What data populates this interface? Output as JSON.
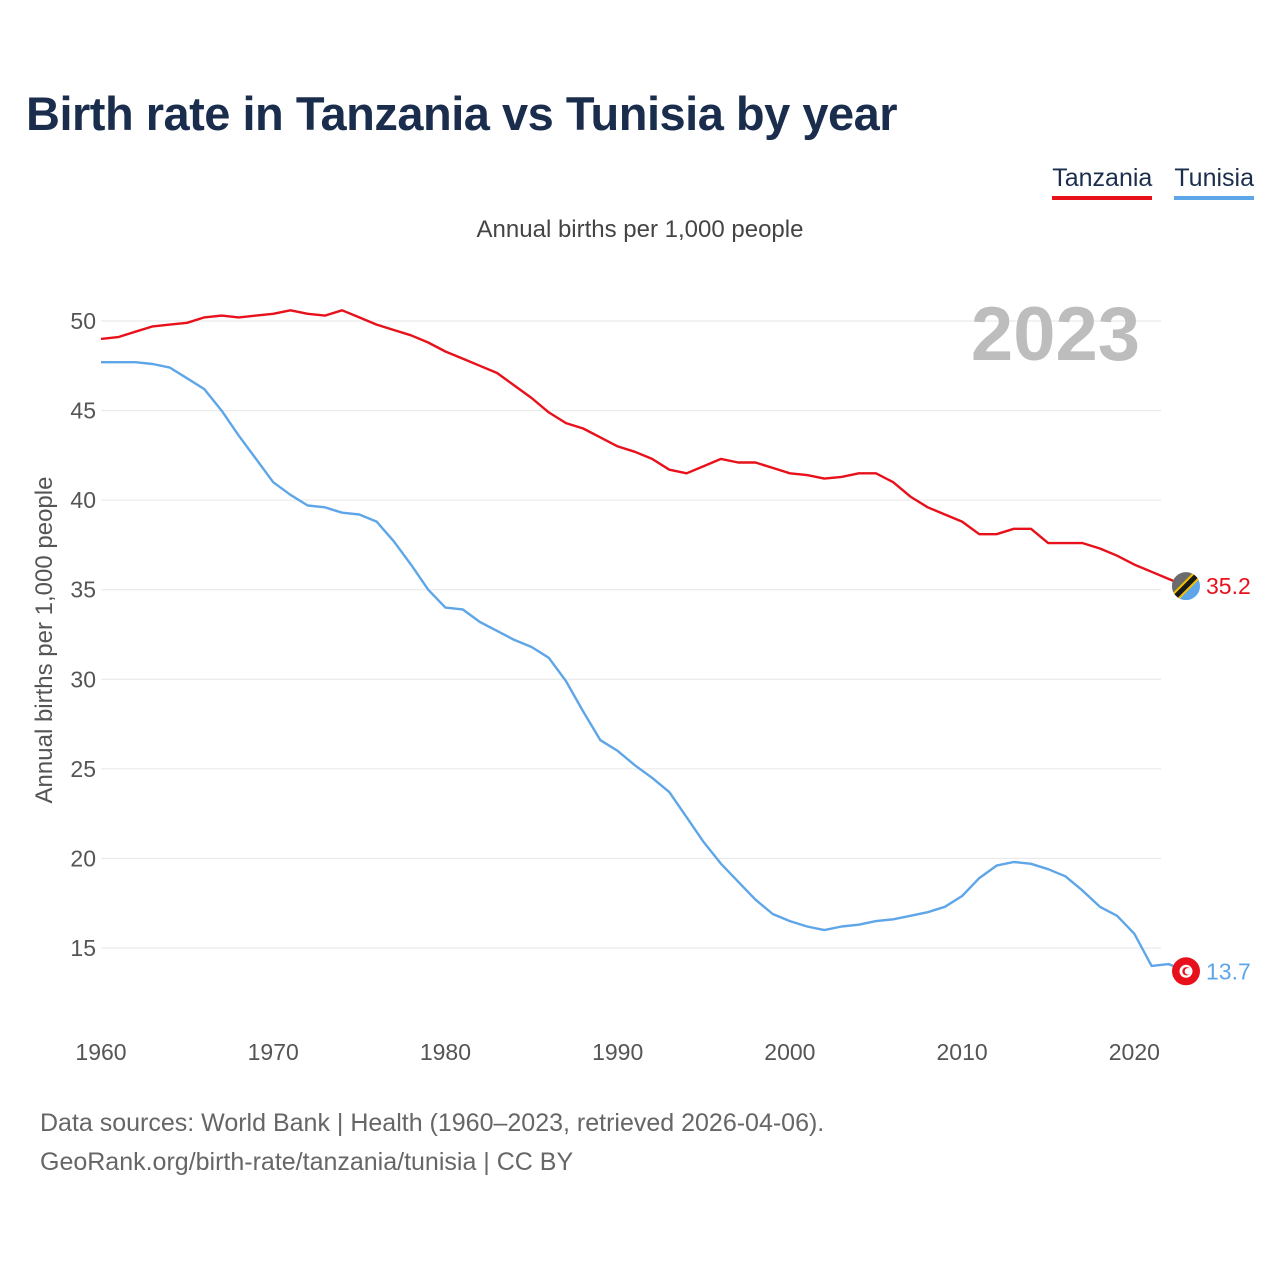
{
  "title": "Birth rate in Tanzania vs Tunisia by year",
  "subtitle": "Annual births per 1,000 people",
  "year_watermark": "2023",
  "footer": {
    "line1": "Data sources: World Bank | Health (1960–2023, retrieved 2026-04-06).",
    "line2": "GeoRank.org/birth-rate/tanzania/tunisia | CC BY"
  },
  "colors": {
    "tanzania": "#e8111b",
    "tunisia": "#5ea6e8",
    "grid": "#e6e6e6",
    "axis_text": "#555555",
    "watermark": "#bdbdbd"
  },
  "chart_data": {
    "type": "line",
    "title": "Birth rate in Tanzania vs Tunisia by year",
    "xlabel": "",
    "ylabel": "Annual births per 1,000 people",
    "xlim": [
      1960,
      2023
    ],
    "ylim": [
      11,
      52
    ],
    "x_ticks": [
      1960,
      1970,
      1980,
      1990,
      2000,
      2010,
      2020
    ],
    "y_ticks": [
      15,
      20,
      25,
      30,
      35,
      40,
      45,
      50
    ],
    "grid": true,
    "legend": "top-right",
    "x": [
      1960,
      1961,
      1962,
      1963,
      1964,
      1965,
      1966,
      1967,
      1968,
      1969,
      1970,
      1971,
      1972,
      1973,
      1974,
      1975,
      1976,
      1977,
      1978,
      1979,
      1980,
      1981,
      1982,
      1983,
      1984,
      1985,
      1986,
      1987,
      1988,
      1989,
      1990,
      1991,
      1992,
      1993,
      1994,
      1995,
      1996,
      1997,
      1998,
      1999,
      2000,
      2001,
      2002,
      2003,
      2004,
      2005,
      2006,
      2007,
      2008,
      2009,
      2010,
      2011,
      2012,
      2013,
      2014,
      2015,
      2016,
      2017,
      2018,
      2019,
      2020,
      2021,
      2022,
      2023
    ],
    "series": [
      {
        "name": "Tanzania",
        "color": "#e8111b",
        "end_label": "35.2",
        "values": [
          49.0,
          49.1,
          49.4,
          49.7,
          49.8,
          49.9,
          50.2,
          50.3,
          50.2,
          50.3,
          50.4,
          50.6,
          50.4,
          50.3,
          50.6,
          50.2,
          49.8,
          49.5,
          49.2,
          48.8,
          48.3,
          47.9,
          47.5,
          47.1,
          46.4,
          45.7,
          44.9,
          44.3,
          44.0,
          43.5,
          43.0,
          42.7,
          42.3,
          41.7,
          41.5,
          41.9,
          42.3,
          42.1,
          42.1,
          41.8,
          41.5,
          41.4,
          41.2,
          41.3,
          41.5,
          41.5,
          41.0,
          40.2,
          39.6,
          39.2,
          38.8,
          38.1,
          38.1,
          38.4,
          38.4,
          37.6,
          37.6,
          37.6,
          37.3,
          36.9,
          36.4,
          36.0,
          35.6,
          35.2
        ]
      },
      {
        "name": "Tunisia",
        "color": "#5ea6e8",
        "end_label": "13.7",
        "values": [
          47.7,
          47.7,
          47.7,
          47.6,
          47.4,
          46.8,
          46.2,
          45.0,
          43.6,
          42.3,
          41.0,
          40.3,
          39.7,
          39.6,
          39.3,
          39.2,
          38.8,
          37.7,
          36.4,
          35.0,
          34.0,
          33.9,
          33.2,
          32.7,
          32.2,
          31.8,
          31.2,
          29.9,
          28.2,
          26.6,
          26.0,
          25.2,
          24.5,
          23.7,
          22.3,
          20.9,
          19.7,
          18.7,
          17.7,
          16.9,
          16.5,
          16.2,
          16.0,
          16.2,
          16.3,
          16.5,
          16.6,
          16.8,
          17.0,
          17.3,
          17.9,
          18.9,
          19.6,
          19.8,
          19.7,
          19.4,
          19.0,
          18.2,
          17.3,
          16.8,
          15.8,
          14.0,
          14.1,
          13.7
        ]
      }
    ]
  }
}
